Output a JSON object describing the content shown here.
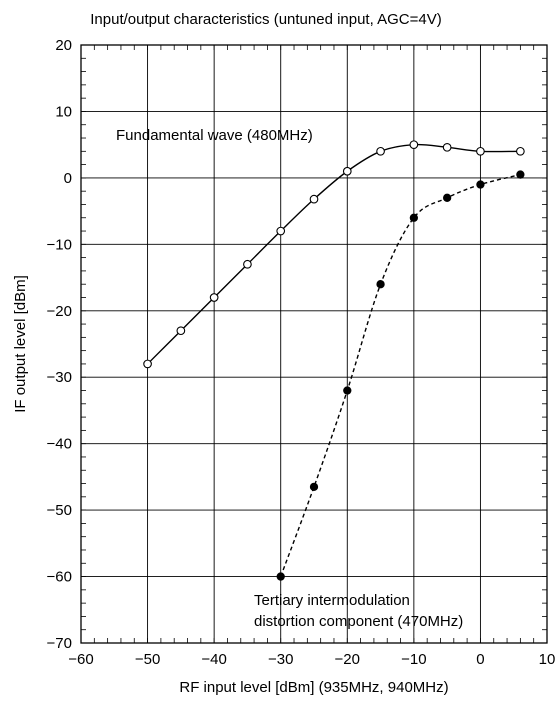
{
  "chart_data": {
    "type": "line",
    "title": "Input/output characteristics (untuned input, AGC=4V)",
    "xlabel": "RF input level [dBm] (935MHz, 940MHz)",
    "ylabel": "IF output level [dBm]",
    "xlim": [
      -60,
      10
    ],
    "ylim": [
      -70,
      20
    ],
    "xticks": [
      -60,
      -50,
      -40,
      -30,
      -20,
      -10,
      0,
      10
    ],
    "yticks": [
      -70,
      -60,
      -50,
      -40,
      -30,
      -20,
      -10,
      0,
      10,
      20
    ],
    "xtick_labels": [
      "−60",
      "−50",
      "−40",
      "−30",
      "−20",
      "−10",
      "0",
      "10"
    ],
    "ytick_labels": [
      "−70",
      "−60",
      "−50",
      "−40",
      "−30",
      "−20",
      "−10",
      "0",
      "10",
      "20"
    ],
    "grid": true,
    "series": [
      {
        "name": "Fundamental wave (480MHz)",
        "marker": "open-circle",
        "line": "solid",
        "x": [
          -50,
          -45,
          -40,
          -35,
          -30,
          -25,
          -20,
          -15,
          -10,
          -5,
          0,
          6
        ],
        "y": [
          -28,
          -23,
          -18,
          -13,
          -8,
          -3.2,
          1,
          4,
          5,
          4.6,
          4,
          4
        ]
      },
      {
        "name": "Tertiary intermodulation distortion component (470MHz)",
        "marker": "filled-circle",
        "line": "dashed",
        "x": [
          -30,
          -25,
          -20,
          -15,
          -10,
          -5,
          0,
          6
        ],
        "y": [
          -60,
          -46.5,
          -32,
          -16,
          -6,
          -3,
          -1,
          0.5
        ]
      }
    ],
    "annotations": [
      {
        "series": 0,
        "lines": [
          "Fundamental wave (480MHz)"
        ]
      },
      {
        "series": 1,
        "lines": [
          "Tertiary intermodulation",
          "distortion component (470MHz)"
        ]
      }
    ]
  }
}
